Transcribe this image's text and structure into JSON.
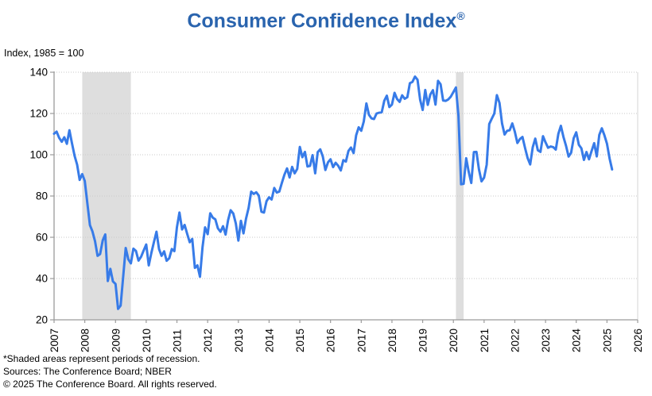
{
  "page": {
    "title": "Consumer Confidence Index",
    "registered_mark": "®",
    "axis_unit_label": "Index, 1985 = 100",
    "footnote_line1": "*Shaded areas represent periods of recession.",
    "footnote_line2": "Sources: The Conference Board;  NBER",
    "footnote_line3": "© 2025 The Conference Board. All rights reserved."
  },
  "colors": {
    "title": "#2A64AE",
    "line": "#377BE8",
    "recession_shade": "#DEDEDE",
    "axis": "#9B9B9B",
    "gridline": "#C9C9C9",
    "border": "#D5D5D5",
    "tick_text": "#000000"
  },
  "chart_data": {
    "type": "line",
    "title": "Consumer Confidence Index®",
    "ylabel": "Index, 1985 = 100",
    "xlabel": "",
    "ylim": [
      20,
      140
    ],
    "yticks": [
      20,
      40,
      60,
      80,
      100,
      120,
      140
    ],
    "xticks": [
      2007,
      2008,
      2009,
      2010,
      2011,
      2012,
      2013,
      2014,
      2015,
      2016,
      2017,
      2018,
      2019,
      2020,
      2021,
      2022,
      2023,
      2024,
      2025,
      2026
    ],
    "xlim": [
      2007,
      2026
    ],
    "grid": "horizontal-dotted",
    "legend": "none",
    "series_name": "Consumer Confidence Index (monthly)",
    "start_year": 2007,
    "start_month": 1,
    "values": [
      110.2,
      111.2,
      108.2,
      106.3,
      108.5,
      105.3,
      111.9,
      105.6,
      99.5,
      95.2,
      87.8,
      90.6,
      87.3,
      76.4,
      65.9,
      62.8,
      58.1,
      51.0,
      51.9,
      58.5,
      61.4,
      38.8,
      44.7,
      38.6,
      37.4,
      25.3,
      26.9,
      40.8,
      54.8,
      49.3,
      47.4,
      54.5,
      53.4,
      48.7,
      50.6,
      53.6,
      56.5,
      46.4,
      52.3,
      57.7,
      62.7,
      54.3,
      51.0,
      53.2,
      48.6,
      49.9,
      54.3,
      53.3,
      64.8,
      72.0,
      63.8,
      66.0,
      61.7,
      57.6,
      59.2,
      45.2,
      46.4,
      40.9,
      55.2,
      64.8,
      61.5,
      71.6,
      69.5,
      68.7,
      64.4,
      62.7,
      65.4,
      61.3,
      68.4,
      73.1,
      71.5,
      66.7,
      58.4,
      68.0,
      61.9,
      69.0,
      74.3,
      82.1,
      81.0,
      81.8,
      80.2,
      72.4,
      72.0,
      77.5,
      79.4,
      78.3,
      83.9,
      81.7,
      82.2,
      86.4,
      90.3,
      93.4,
      89.0,
      94.1,
      91.0,
      93.1,
      103.8,
      98.8,
      101.4,
      94.3,
      94.6,
      99.8,
      91.0,
      101.3,
      102.6,
      99.1,
      92.6,
      96.3,
      97.8,
      94.0,
      96.1,
      94.7,
      92.4,
      97.4,
      96.7,
      101.8,
      103.5,
      100.8,
      109.4,
      113.3,
      111.6,
      116.1,
      124.9,
      119.4,
      117.6,
      117.3,
      120.0,
      120.4,
      120.6,
      126.2,
      128.6,
      123.1,
      124.3,
      130.0,
      127.0,
      125.6,
      128.8,
      127.1,
      127.9,
      134.7,
      135.3,
      137.9,
      136.4,
      126.6,
      121.7,
      131.4,
      124.2,
      129.2,
      131.3,
      124.3,
      135.8,
      134.2,
      126.3,
      126.1,
      126.8,
      128.2,
      130.4,
      132.6,
      118.8,
      85.7,
      85.9,
      98.3,
      91.7,
      86.3,
      101.3,
      101.4,
      92.9,
      87.1,
      88.9,
      95.2,
      114.9,
      117.5,
      120.0,
      128.9,
      125.1,
      115.2,
      109.8,
      111.6,
      111.9,
      115.2,
      111.1,
      105.7,
      107.6,
      108.6,
      103.2,
      98.4,
      95.3,
      103.6,
      107.8,
      102.2,
      101.4,
      109.0,
      106.0,
      103.4,
      104.0,
      103.7,
      102.5,
      110.1,
      114.0,
      108.7,
      104.3,
      99.1,
      101.0,
      108.0,
      110.9,
      104.8,
      103.1,
      97.5,
      101.3,
      97.8,
      101.9,
      105.6,
      99.2,
      109.6,
      112.8,
      109.5,
      105.3,
      98.3,
      92.9
    ],
    "recessions": [
      {
        "label": "2008-2009 recession",
        "start": 2007.917,
        "end": 2009.5
      },
      {
        "label": "COVID-19 recession",
        "start": 2020.083,
        "end": 2020.333
      }
    ]
  }
}
